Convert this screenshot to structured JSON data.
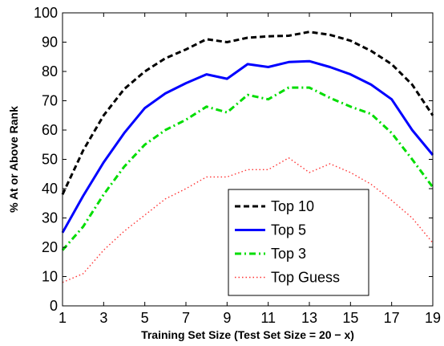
{
  "chart_data": {
    "type": "line",
    "xlabel": "Training Set Size (Test Set Size = 20 − x)",
    "ylabel": "% At or Above Rank",
    "xlim": [
      1,
      19
    ],
    "ylim": [
      0,
      100
    ],
    "xticks": [
      1,
      3,
      5,
      7,
      9,
      11,
      13,
      15,
      17,
      19
    ],
    "yticks": [
      0,
      10,
      20,
      30,
      40,
      50,
      60,
      70,
      80,
      90,
      100
    ],
    "grid": false,
    "legend_position": "lower-right",
    "x": [
      1,
      2,
      3,
      4,
      5,
      6,
      7,
      8,
      9,
      10,
      11,
      12,
      13,
      14,
      15,
      16,
      17,
      18,
      19
    ],
    "series": [
      {
        "name": "Top 10",
        "color": "#000000",
        "style": "dashed",
        "values": [
          38,
          53,
          65,
          74,
          80,
          84.5,
          87.5,
          91,
          90,
          91.5,
          92,
          92.2,
          93.5,
          92.5,
          90.5,
          87,
          82.5,
          75.5,
          65
        ]
      },
      {
        "name": "Top 5",
        "color": "#0000ff",
        "style": "solid",
        "values": [
          25,
          37.5,
          49,
          59,
          67.5,
          72.5,
          76,
          79,
          77.5,
          82.5,
          81.5,
          83.2,
          83.5,
          81.5,
          79,
          75.5,
          70.5,
          60,
          51.5
        ]
      },
      {
        "name": "Top 3",
        "color": "#00dd00",
        "style": "dashdot",
        "values": [
          19,
          27,
          38,
          47.5,
          55,
          60,
          63.5,
          68,
          66,
          72,
          70.5,
          74.5,
          74.5,
          71,
          68,
          65.5,
          59,
          50,
          40.5
        ]
      },
      {
        "name": "Top Guess",
        "color": "#ff3333",
        "style": "dotted",
        "values": [
          8,
          11,
          19,
          25.5,
          31,
          36.5,
          40,
          44,
          44,
          46.5,
          46.5,
          50.5,
          45.5,
          48.5,
          45.5,
          41.5,
          36,
          30,
          21.5
        ]
      }
    ]
  }
}
